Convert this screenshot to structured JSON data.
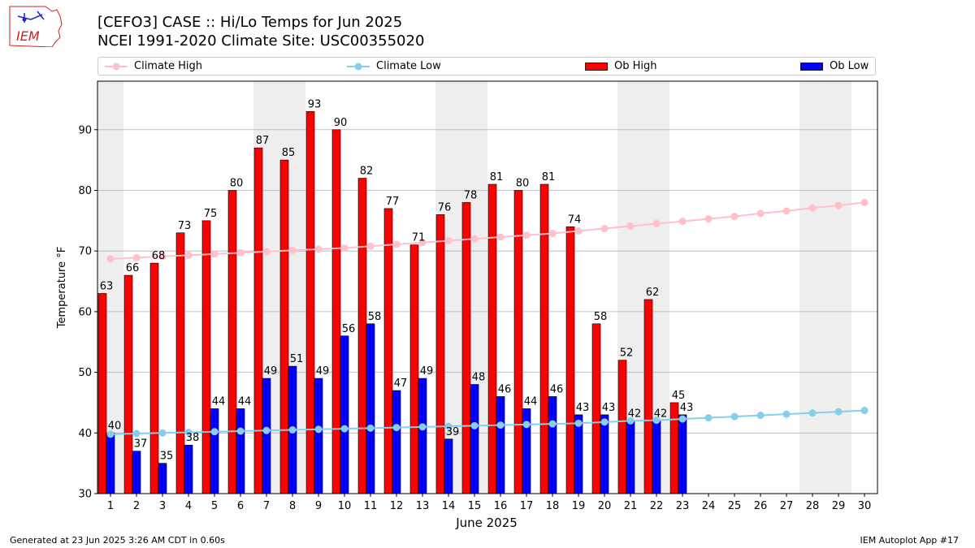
{
  "header": {
    "title_line1": "[CEFO3] CASE :: Hi/Lo Temps for Jun 2025",
    "title_line2": "NCEI 1991-2020 Climate Site: USC00355020",
    "logo_text": "IEM"
  },
  "footer": {
    "generated": "Generated at 23 Jun 2025 3:26 AM CDT in 0.60s",
    "app": "IEM Autoplot App #17"
  },
  "colors": {
    "ob_high": "#ff0000",
    "ob_low": "#0000ff",
    "climate_high": "#ffc0cb",
    "climate_low": "#87ceeb",
    "weekend_shade": "#eeeeee",
    "grid": "#b0b0b0"
  },
  "chart_data": {
    "type": "bar",
    "xlabel": "June 2025",
    "ylabel": "Temperature °F",
    "ylim": [
      30,
      98
    ],
    "yticks": [
      30,
      40,
      50,
      60,
      70,
      80,
      90
    ],
    "xticks": [
      1,
      2,
      3,
      4,
      5,
      6,
      7,
      8,
      9,
      10,
      11,
      12,
      13,
      14,
      15,
      16,
      17,
      18,
      19,
      20,
      21,
      22,
      23,
      24,
      25,
      26,
      27,
      28,
      29,
      30
    ],
    "grid": "horizontal",
    "legend_position": "top",
    "shaded_days": [
      1,
      7,
      8,
      14,
      15,
      21,
      22,
      28,
      29
    ],
    "series": [
      {
        "name": "Climate High",
        "kind": "line",
        "x": [
          1,
          2,
          3,
          4,
          5,
          6,
          7,
          8,
          9,
          10,
          11,
          12,
          13,
          14,
          15,
          16,
          17,
          18,
          19,
          20,
          21,
          22,
          23,
          24,
          25,
          26,
          27,
          28,
          29,
          30
        ],
        "values": [
          68.7,
          68.9,
          69.1,
          69.3,
          69.5,
          69.7,
          69.9,
          70.1,
          70.3,
          70.5,
          70.8,
          71.1,
          71.4,
          71.7,
          72.0,
          72.3,
          72.6,
          72.9,
          73.3,
          73.7,
          74.1,
          74.5,
          74.9,
          75.3,
          75.7,
          76.2,
          76.6,
          77.1,
          77.5,
          78.0
        ]
      },
      {
        "name": "Climate Low",
        "kind": "line",
        "x": [
          1,
          2,
          3,
          4,
          5,
          6,
          7,
          8,
          9,
          10,
          11,
          12,
          13,
          14,
          15,
          16,
          17,
          18,
          19,
          20,
          21,
          22,
          23,
          24,
          25,
          26,
          27,
          28,
          29,
          30
        ],
        "values": [
          39.8,
          39.9,
          40.0,
          40.1,
          40.2,
          40.3,
          40.4,
          40.5,
          40.6,
          40.7,
          40.8,
          40.9,
          41.0,
          41.1,
          41.2,
          41.3,
          41.4,
          41.5,
          41.6,
          41.8,
          42.0,
          42.1,
          42.3,
          42.5,
          42.7,
          42.9,
          43.1,
          43.3,
          43.5,
          43.7
        ]
      },
      {
        "name": "Ob High",
        "kind": "bar",
        "x": [
          1,
          2,
          3,
          4,
          5,
          6,
          7,
          8,
          9,
          10,
          11,
          12,
          13,
          14,
          15,
          16,
          17,
          18,
          19,
          20,
          21,
          22,
          23
        ],
        "values": [
          63,
          66,
          68,
          73,
          75,
          80,
          87,
          85,
          93,
          90,
          82,
          77,
          71,
          76,
          78,
          81,
          80,
          81,
          74,
          58,
          52,
          62,
          45
        ]
      },
      {
        "name": "Ob Low",
        "kind": "bar",
        "x": [
          1,
          2,
          3,
          4,
          5,
          6,
          7,
          8,
          9,
          10,
          11,
          12,
          13,
          14,
          15,
          16,
          17,
          18,
          19,
          20,
          21,
          22,
          23
        ],
        "values": [
          40,
          37,
          35,
          38,
          44,
          44,
          49,
          51,
          49,
          56,
          58,
          47,
          49,
          39,
          48,
          46,
          44,
          46,
          43,
          43,
          42,
          42,
          43
        ]
      }
    ]
  }
}
